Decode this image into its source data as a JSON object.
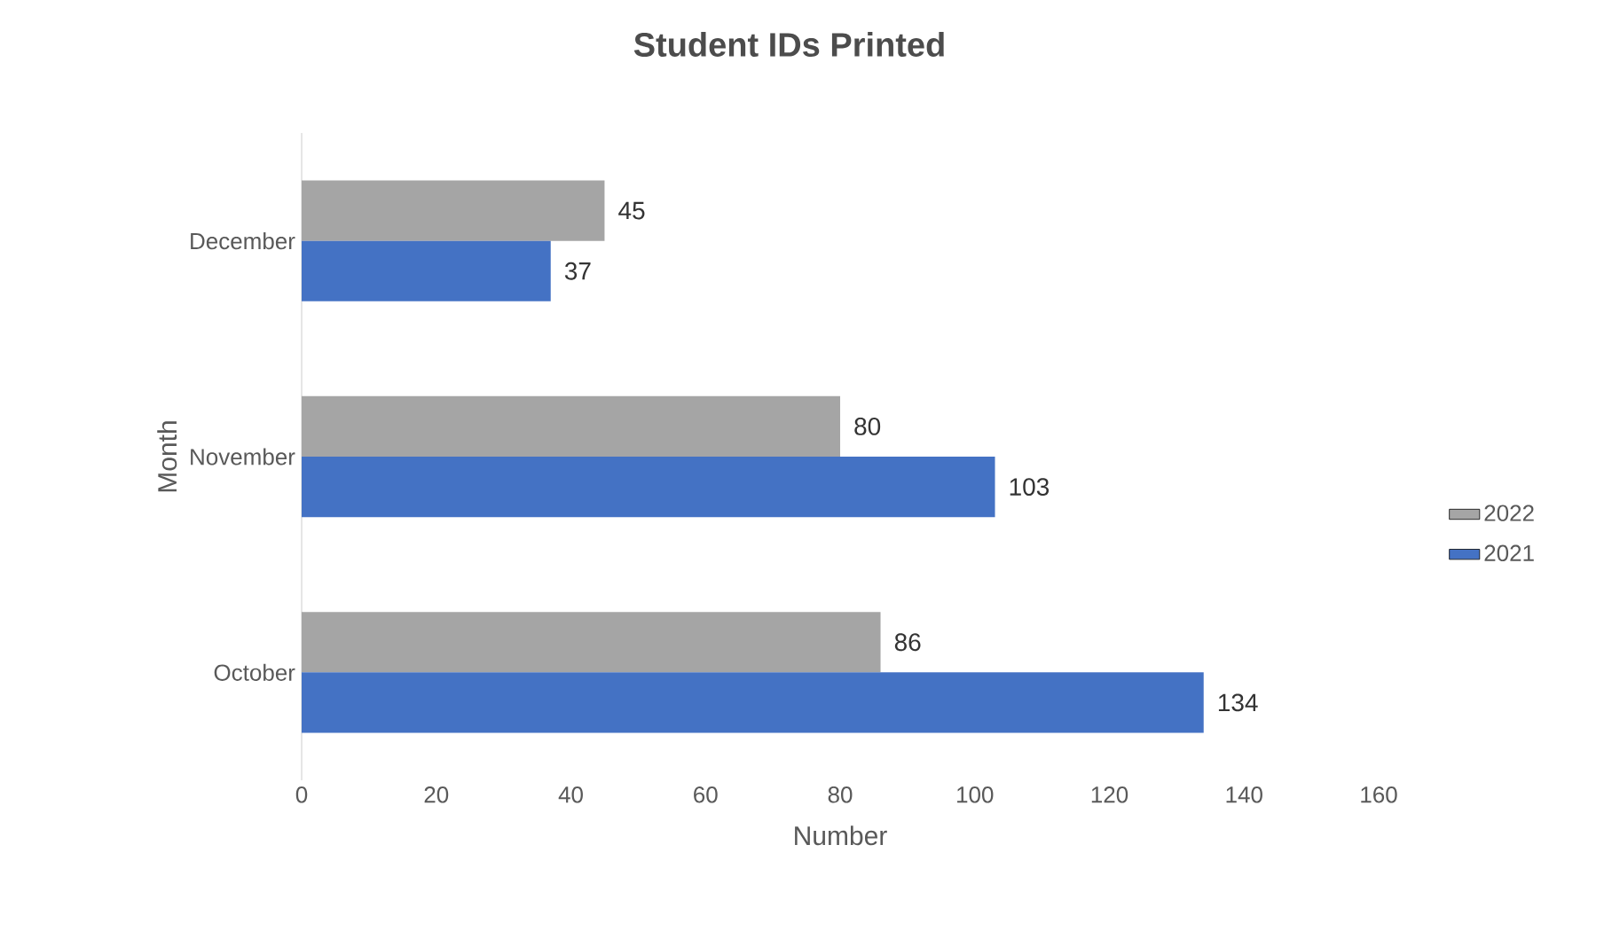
{
  "chart_data": {
    "type": "bar",
    "orientation": "horizontal",
    "title": "Student IDs Printed",
    "xlabel": "Number",
    "ylabel": "Month",
    "categories": [
      "December",
      "November",
      "October"
    ],
    "series": [
      {
        "name": "2022",
        "color": "#a5a5a5",
        "values": [
          45,
          80,
          86
        ]
      },
      {
        "name": "2021",
        "color": "#4472c4",
        "values": [
          37,
          103,
          134
        ]
      }
    ],
    "xlim": [
      0,
      160
    ],
    "xticks": [
      0,
      20,
      40,
      60,
      80,
      100,
      120,
      140,
      160
    ],
    "data_labels": true,
    "legend": "right",
    "grid": false
  }
}
